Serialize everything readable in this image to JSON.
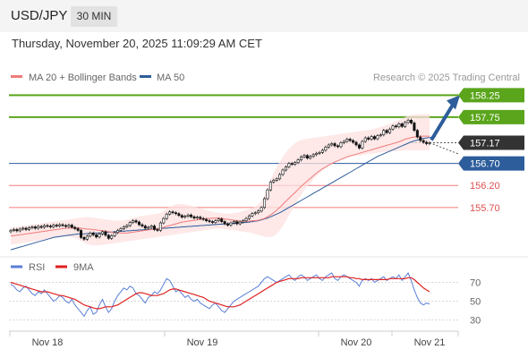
{
  "header": {
    "symbol": "USD/JPY",
    "timeframe": "30 MIN"
  },
  "timestamp": "Thursday, November 20, 2025 11:09:29 AM CET",
  "legend": {
    "ma20_label": "MA 20 + Bollinger Bands",
    "ma50_label": "MA 50",
    "credit": "Research © 2025 Trading Central",
    "colors": {
      "ma20": "#f07b7b",
      "ma50": "#2d5d9b"
    }
  },
  "chart_data": [
    {
      "type": "line",
      "subtype": "candlestick",
      "x_labels": [
        "Nov 18",
        "Nov 19",
        "Nov 20",
        "Nov 21"
      ],
      "ylim": [
        154.62,
        158.48
      ],
      "levels": [
        {
          "label": "158.25",
          "value": 158.25,
          "color": "#5aa51b",
          "kind": "target"
        },
        {
          "label": "157.75",
          "value": 157.75,
          "color": "#5aa51b",
          "kind": "target"
        },
        {
          "label": "157.17",
          "value": 157.17,
          "color": "#333333",
          "kind": "current"
        },
        {
          "label": "156.70",
          "value": 156.7,
          "color": "#2d5d9b",
          "kind": "pivot"
        },
        {
          "label": "156.20",
          "value": 156.2,
          "color": "#f07b7b",
          "kind": "support"
        },
        {
          "label": "155.70",
          "value": 155.7,
          "color": "#f07b7b",
          "kind": "support"
        }
      ],
      "close": [
        155.18,
        155.2,
        155.17,
        155.21,
        155.23,
        155.2,
        155.24,
        155.26,
        155.23,
        155.27,
        155.25,
        155.29,
        155.28,
        155.26,
        155.3,
        155.28,
        155.31,
        155.29,
        155.27,
        155.3,
        155.25,
        155.22,
        155.18,
        155.02,
        154.98,
        155.05,
        155.12,
        155.08,
        155.03,
        155.1,
        155.15,
        155.07,
        155.0,
        155.06,
        155.13,
        155.18,
        155.22,
        155.26,
        155.29,
        155.36,
        155.4,
        155.37,
        155.31,
        155.28,
        155.23,
        155.25,
        155.28,
        155.2,
        155.18,
        155.35,
        155.45,
        155.55,
        155.6,
        155.58,
        155.56,
        155.52,
        155.48,
        155.5,
        155.53,
        155.49,
        155.46,
        155.48,
        155.45,
        155.43,
        155.4,
        155.38,
        155.36,
        155.4,
        155.44,
        155.38,
        155.33,
        155.3,
        155.35,
        155.38,
        155.33,
        155.37,
        155.4,
        155.45,
        155.51,
        155.56,
        155.58,
        155.62,
        155.7,
        155.9,
        156.1,
        156.28,
        156.32,
        156.35,
        156.45,
        156.55,
        156.62,
        156.7,
        156.68,
        156.72,
        156.78,
        156.85,
        156.88,
        156.82,
        156.86,
        156.9,
        156.93,
        156.95,
        157.0,
        157.07,
        157.12,
        157.15,
        157.1,
        157.08,
        157.17,
        157.2,
        157.25,
        157.22,
        157.18,
        157.12,
        157.05,
        157.2,
        157.28,
        157.25,
        157.31,
        157.26,
        157.33,
        157.35,
        157.45,
        157.4,
        157.48,
        157.55,
        157.53,
        157.6,
        157.54,
        157.63,
        157.68,
        157.62,
        157.45,
        157.3,
        157.22,
        157.18,
        157.15,
        157.17
      ],
      "ma20": [
        155.05,
        155.06,
        155.07,
        155.08,
        155.09,
        155.1,
        155.11,
        155.12,
        155.13,
        155.14,
        155.15,
        155.16,
        155.17,
        155.18,
        155.19,
        155.2,
        155.21,
        155.22,
        155.23,
        155.23,
        155.24,
        155.24,
        155.24,
        155.23,
        155.22,
        155.21,
        155.21,
        155.2,
        155.19,
        155.18,
        155.17,
        155.16,
        155.15,
        155.14,
        155.13,
        155.13,
        155.12,
        155.12,
        155.12,
        155.13,
        155.14,
        155.15,
        155.16,
        155.17,
        155.18,
        155.19,
        155.2,
        155.21,
        155.22,
        155.23,
        155.25,
        155.27,
        155.29,
        155.31,
        155.33,
        155.35,
        155.37,
        155.38,
        155.39,
        155.4,
        155.41,
        155.42,
        155.43,
        155.44,
        155.45,
        155.45,
        155.46,
        155.46,
        155.46,
        155.45,
        155.44,
        155.43,
        155.42,
        155.41,
        155.4,
        155.39,
        155.39,
        155.39,
        155.39,
        155.4,
        155.4,
        155.41,
        155.43,
        155.45,
        155.49,
        155.53,
        155.58,
        155.64,
        155.7,
        155.77,
        155.84,
        155.91,
        155.98,
        156.04,
        156.11,
        156.18,
        156.24,
        156.3,
        156.36,
        156.42,
        156.48,
        156.53,
        156.58,
        156.62,
        156.66,
        156.7,
        156.73,
        156.76,
        156.79,
        156.82,
        156.85,
        156.87,
        156.89,
        156.91,
        156.93,
        156.95,
        156.97,
        156.99,
        157.01,
        157.03,
        157.05,
        157.07,
        157.09,
        157.11,
        157.13,
        157.15,
        157.17,
        157.19,
        157.22,
        157.25,
        157.27,
        157.29,
        157.3,
        157.31,
        157.32,
        157.32,
        157.32,
        157.32
      ],
      "bb_upper": [
        155.24,
        155.25,
        155.26,
        155.27,
        155.28,
        155.29,
        155.3,
        155.31,
        155.32,
        155.33,
        155.34,
        155.35,
        155.36,
        155.37,
        155.38,
        155.39,
        155.4,
        155.41,
        155.42,
        155.43,
        155.44,
        155.45,
        155.46,
        155.47,
        155.48,
        155.48,
        155.48,
        155.47,
        155.46,
        155.45,
        155.44,
        155.43,
        155.42,
        155.41,
        155.4,
        155.4,
        155.4,
        155.41,
        155.42,
        155.44,
        155.46,
        155.48,
        155.5,
        155.51,
        155.52,
        155.53,
        155.54,
        155.55,
        155.56,
        155.58,
        155.62,
        155.67,
        155.72,
        155.75,
        155.77,
        155.78,
        155.78,
        155.77,
        155.76,
        155.74,
        155.72,
        155.7,
        155.68,
        155.66,
        155.64,
        155.62,
        155.6,
        155.59,
        155.58,
        155.57,
        155.56,
        155.56,
        155.56,
        155.57,
        155.58,
        155.6,
        155.62,
        155.64,
        155.66,
        155.68,
        155.72,
        155.77,
        155.85,
        155.98,
        156.15,
        156.32,
        156.48,
        156.62,
        156.74,
        156.85,
        156.95,
        157.03,
        157.1,
        157.16,
        157.2,
        157.23,
        157.25,
        157.26,
        157.27,
        157.28,
        157.29,
        157.3,
        157.31,
        157.32,
        157.33,
        157.34,
        157.35,
        157.36,
        157.37,
        157.38,
        157.39,
        157.4,
        157.41,
        157.42,
        157.43,
        157.44,
        157.45,
        157.46,
        157.47,
        157.49,
        157.51,
        157.53,
        157.55,
        157.57,
        157.6,
        157.63,
        157.66,
        157.69,
        157.72,
        157.75,
        157.78,
        157.8,
        157.81,
        157.82,
        157.82,
        157.82,
        157.82,
        157.82
      ],
      "bb_lower": [
        154.86,
        154.87,
        154.88,
        154.89,
        154.9,
        154.91,
        154.92,
        154.93,
        154.94,
        154.95,
        154.96,
        154.97,
        154.98,
        154.99,
        155.0,
        155.01,
        155.02,
        155.03,
        155.04,
        155.03,
        155.02,
        155.01,
        154.98,
        154.94,
        154.9,
        154.87,
        154.85,
        154.84,
        154.84,
        154.84,
        154.85,
        154.86,
        154.87,
        154.88,
        154.89,
        154.9,
        154.91,
        154.92,
        154.93,
        154.94,
        154.95,
        154.96,
        154.97,
        154.98,
        154.99,
        155.0,
        155.01,
        155.02,
        155.03,
        155.04,
        155.05,
        155.06,
        155.07,
        155.08,
        155.09,
        155.1,
        155.11,
        155.12,
        155.13,
        155.14,
        155.15,
        155.16,
        155.17,
        155.18,
        155.19,
        155.2,
        155.21,
        155.22,
        155.22,
        155.22,
        155.21,
        155.2,
        155.19,
        155.18,
        155.17,
        155.16,
        155.15,
        155.14,
        155.13,
        155.12,
        155.1,
        155.08,
        155.06,
        155.04,
        155.03,
        155.03,
        155.05,
        155.1,
        155.18,
        155.28,
        155.4,
        155.52,
        155.64,
        155.76,
        155.88,
        155.99,
        156.09,
        156.18,
        156.26,
        156.34,
        156.41,
        156.48,
        156.54,
        156.59,
        156.64,
        156.68,
        156.72,
        156.75,
        156.78,
        156.8,
        156.82,
        156.84,
        156.86,
        156.87,
        156.88,
        156.89,
        156.9,
        156.91,
        156.92,
        156.93,
        156.94,
        156.95,
        156.96,
        156.97,
        156.97,
        156.98,
        156.98,
        156.99,
        156.99,
        157.0,
        157.0,
        157.0,
        157.0,
        157.0,
        157.0,
        157.0,
        157.0,
        157.0
      ],
      "ma50": [
        154.74,
        154.76,
        154.78,
        154.8,
        154.82,
        154.84,
        154.86,
        154.88,
        154.9,
        154.92,
        154.94,
        154.96,
        154.98,
        155.0,
        155.02,
        155.03,
        155.04,
        155.05,
        155.06,
        155.07,
        155.08,
        155.09,
        155.1,
        155.1,
        155.1,
        155.11,
        155.11,
        155.12,
        155.12,
        155.12,
        155.13,
        155.13,
        155.14,
        155.14,
        155.15,
        155.15,
        155.16,
        155.16,
        155.17,
        155.17,
        155.18,
        155.18,
        155.19,
        155.19,
        155.2,
        155.2,
        155.21,
        155.21,
        155.22,
        155.22,
        155.23,
        155.23,
        155.24,
        155.24,
        155.25,
        155.25,
        155.26,
        155.26,
        155.27,
        155.27,
        155.28,
        155.28,
        155.29,
        155.29,
        155.3,
        155.3,
        155.31,
        155.31,
        155.32,
        155.32,
        155.33,
        155.33,
        155.34,
        155.34,
        155.35,
        155.35,
        155.36,
        155.36,
        155.37,
        155.38,
        155.39,
        155.4,
        155.42,
        155.44,
        155.46,
        155.49,
        155.52,
        155.55,
        155.58,
        155.62,
        155.66,
        155.7,
        155.74,
        155.78,
        155.82,
        155.86,
        155.9,
        155.94,
        155.98,
        156.02,
        156.06,
        156.1,
        156.14,
        156.18,
        156.22,
        156.26,
        156.3,
        156.34,
        156.38,
        156.42,
        156.46,
        156.5,
        156.54,
        156.58,
        156.62,
        156.66,
        156.7,
        156.74,
        156.78,
        156.82,
        156.86,
        156.89,
        156.92,
        156.95,
        156.98,
        157.01,
        157.04,
        157.07,
        157.1,
        157.13,
        157.16,
        157.19,
        157.21,
        157.23,
        157.25,
        157.27,
        157.28,
        157.29,
        157.3,
        157.31
      ]
    },
    {
      "type": "line",
      "ylim": [
        20,
        80
      ],
      "y_ticks": [
        30,
        50,
        70
      ],
      "legend": [
        {
          "name": "RSI",
          "color": "#5a7fd6"
        },
        {
          "name": "9MA",
          "color": "#e02020"
        }
      ],
      "rsi": [
        68,
        66,
        62,
        60,
        64,
        66,
        62,
        58,
        56,
        60,
        58,
        62,
        58,
        54,
        50,
        52,
        56,
        54,
        50,
        48,
        52,
        46,
        42,
        38,
        34,
        40,
        44,
        36,
        38,
        46,
        52,
        44,
        38,
        42,
        50,
        56,
        60,
        64,
        62,
        66,
        64,
        58,
        56,
        52,
        48,
        54,
        56,
        60,
        58,
        62,
        68,
        74,
        72,
        66,
        60,
        62,
        58,
        54,
        56,
        52,
        50,
        52,
        48,
        46,
        44,
        42,
        46,
        48,
        44,
        40,
        38,
        42,
        46,
        50,
        52,
        54,
        56,
        58,
        60,
        62,
        64,
        66,
        70,
        74,
        76,
        74,
        72,
        70,
        72,
        74,
        76,
        78,
        74,
        72,
        76,
        78,
        76,
        72,
        74,
        76,
        78,
        74,
        72,
        76,
        78,
        80,
        74,
        72,
        76,
        78,
        76,
        74,
        72,
        70,
        66,
        72,
        74,
        72,
        74,
        70,
        72,
        74,
        76,
        72,
        74,
        76,
        74,
        78,
        72,
        76,
        80,
        72,
        62,
        54,
        48,
        46,
        48,
        47
      ],
      "ma9": [
        70,
        69,
        68,
        67,
        66,
        65,
        64,
        63,
        62,
        61,
        60,
        60,
        60,
        59,
        58,
        57,
        56,
        56,
        55,
        54,
        53,
        52,
        50,
        48,
        46,
        45,
        44,
        43,
        42,
        42,
        43,
        44,
        44,
        44,
        45,
        46,
        48,
        50,
        52,
        54,
        56,
        58,
        59,
        59,
        58,
        57,
        56,
        56,
        56,
        57,
        58,
        60,
        62,
        63,
        63,
        62,
        61,
        60,
        59,
        58,
        57,
        56,
        55,
        54,
        52,
        50,
        49,
        48,
        47,
        46,
        45,
        44,
        44,
        44,
        45,
        46,
        48,
        50,
        52,
        54,
        56,
        58,
        60,
        62,
        64,
        66,
        68,
        70,
        71,
        72,
        73,
        74,
        74,
        74,
        74,
        75,
        75,
        75,
        75,
        75,
        75,
        75,
        75,
        75,
        75,
        76,
        76,
        76,
        76,
        76,
        76,
        75,
        75,
        74,
        74,
        73,
        73,
        73,
        73,
        73,
        73,
        73,
        73,
        73,
        74,
        74,
        74,
        74,
        74,
        74,
        75,
        75,
        73,
        70,
        67,
        64,
        62,
        60
      ]
    }
  ]
}
